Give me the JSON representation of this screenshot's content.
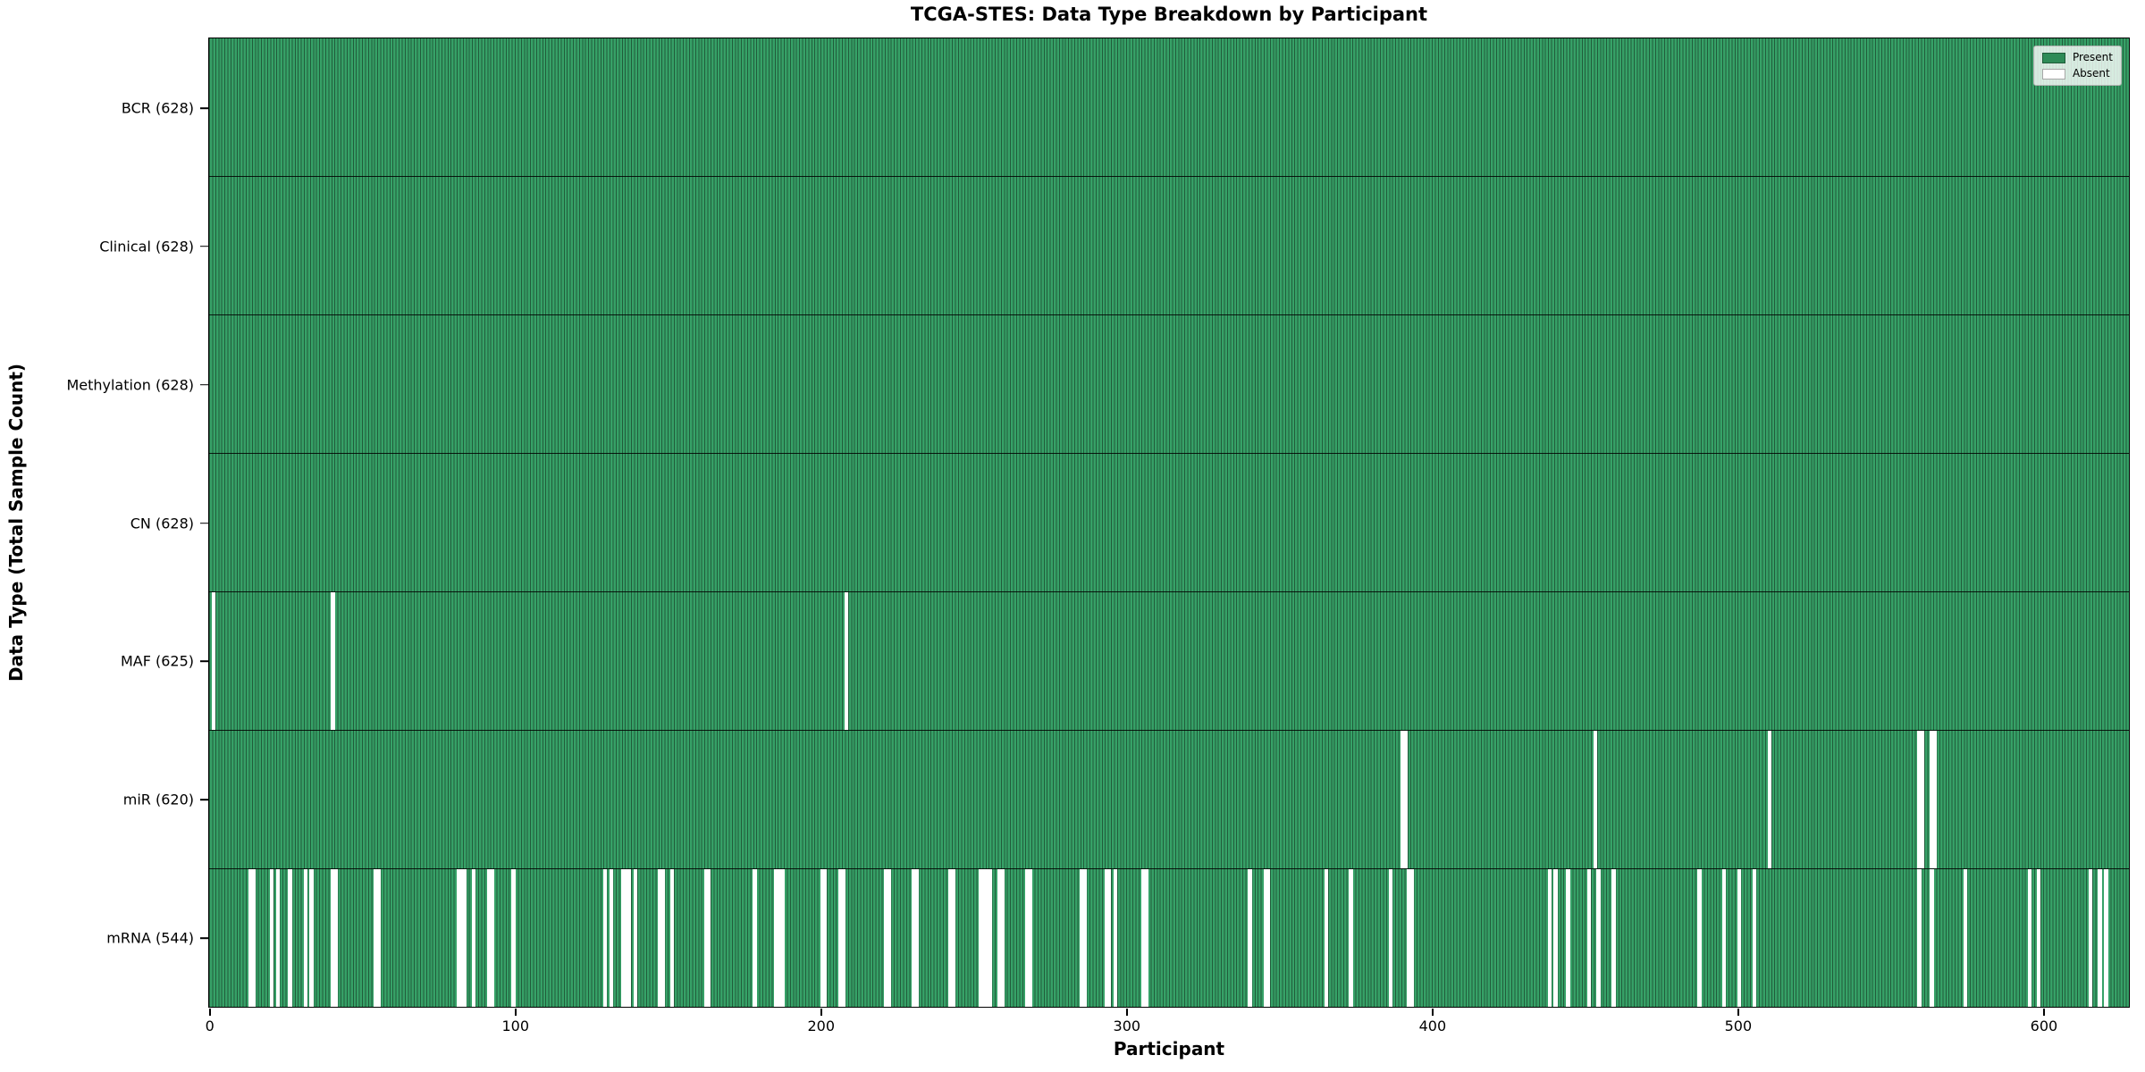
{
  "chart_data": {
    "type": "heatmap",
    "title": "TCGA-STES: Data Type Breakdown by Participant",
    "xlabel": "Participant",
    "ylabel": "Data Type (Total Sample Count)",
    "n_participants": 628,
    "x_ticks": [
      0,
      100,
      200,
      300,
      400,
      500,
      600
    ],
    "legend_position": "upper right",
    "legend": [
      {
        "label": "Present",
        "color": "#2e8b57"
      },
      {
        "label": "Absent",
        "color": "#ffffff"
      }
    ],
    "colors": {
      "present": "#36a167",
      "bar_edge": "#215c3b",
      "absent": "#ffffff",
      "row_divider": "#000000",
      "frame": "#000000",
      "background": "#ffffff"
    },
    "rows": [
      {
        "name": "bcr",
        "label": "BCR (628)",
        "data_type": "BCR",
        "count": 628,
        "absent": []
      },
      {
        "name": "clinical",
        "label": "Clinical (628)",
        "data_type": "Clinical",
        "count": 628,
        "absent": []
      },
      {
        "name": "methylation",
        "label": "Methylation (628)",
        "data_type": "Methylation",
        "count": 628,
        "absent": []
      },
      {
        "name": "cn",
        "label": "CN (628)",
        "data_type": "CN",
        "count": 628,
        "absent": []
      },
      {
        "name": "maf",
        "label": "MAF (625)",
        "data_type": "MAF",
        "count": 625,
        "absent": [
          1,
          40,
          208
        ]
      },
      {
        "name": "mir",
        "label": "miR (620)",
        "data_type": "miR",
        "count": 620,
        "absent": [
          390,
          391,
          453,
          510,
          559,
          560,
          563,
          564
        ]
      },
      {
        "name": "mrna",
        "label": "mRNA (544)",
        "data_type": "mRNA",
        "count": 544,
        "absent": [
          13,
          14,
          20,
          22,
          26,
          31,
          33,
          40,
          41,
          54,
          55,
          81,
          82,
          83,
          86,
          91,
          92,
          99,
          129,
          131,
          135,
          136,
          137,
          139,
          147,
          148,
          151,
          162,
          163,
          178,
          185,
          186,
          187,
          200,
          201,
          206,
          207,
          221,
          222,
          230,
          231,
          242,
          243,
          252,
          253,
          254,
          255,
          258,
          259,
          267,
          268,
          285,
          286,
          293,
          294,
          296,
          305,
          306,
          340,
          345,
          346,
          365,
          373,
          386,
          392,
          393,
          438,
          440,
          444,
          451,
          454,
          459,
          487,
          495,
          500,
          505,
          559,
          563,
          574,
          595,
          598,
          615,
          618,
          620
        ]
      }
    ]
  }
}
